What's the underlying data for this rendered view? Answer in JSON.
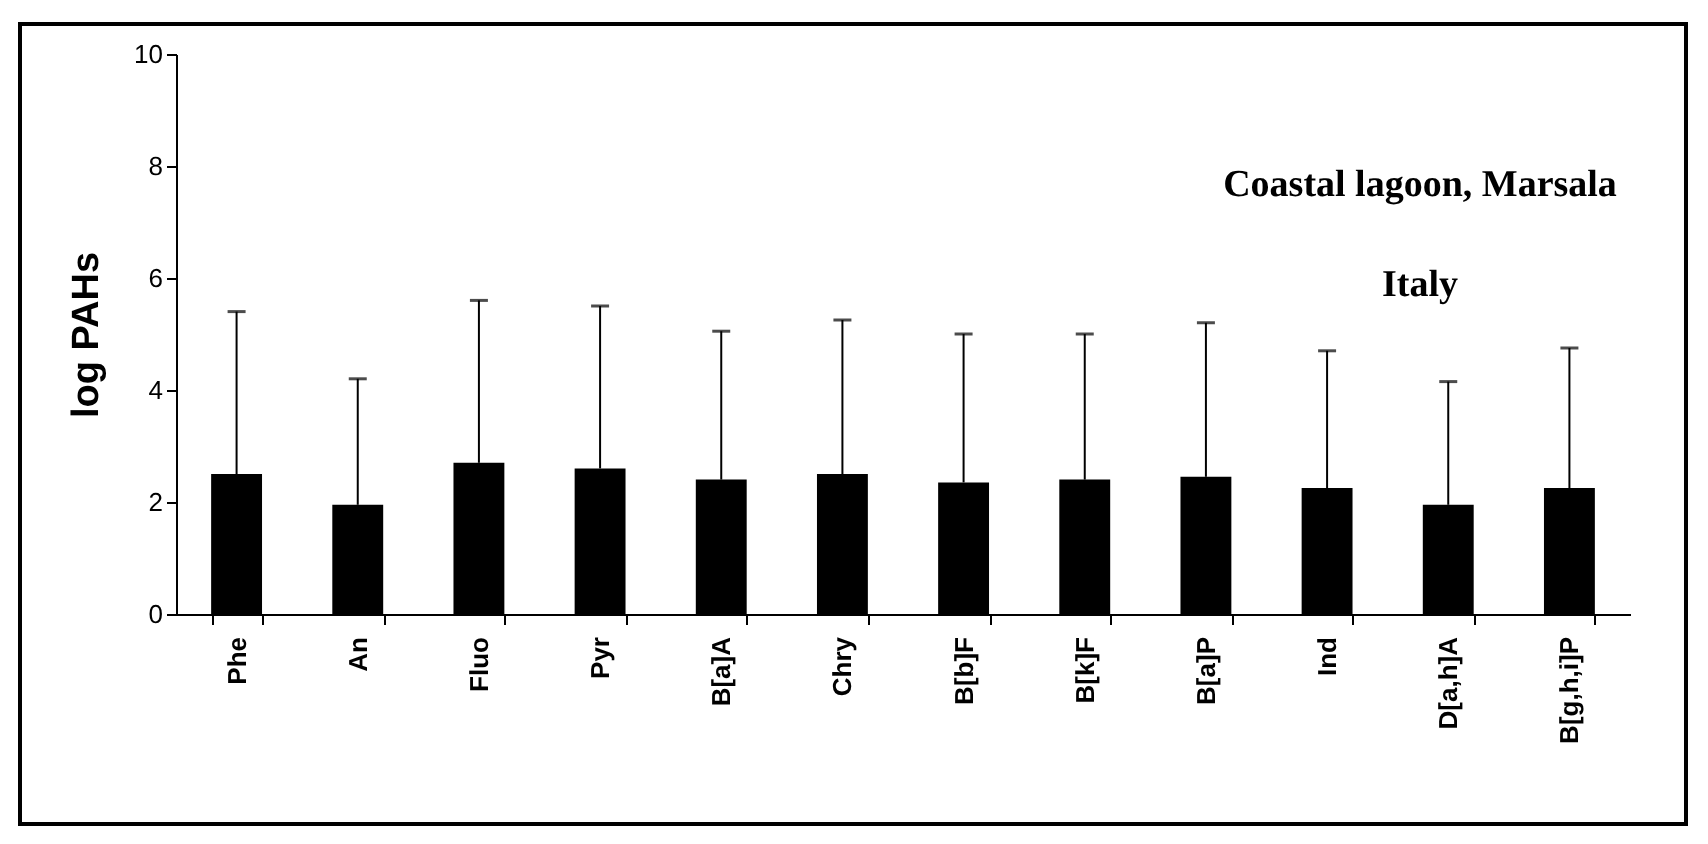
{
  "chart_data": {
    "type": "bar",
    "ylabel": "log PAHs",
    "annotations": [
      "Coastal lagoon, Marsala",
      "Italy"
    ],
    "categories": [
      "Phe",
      "An",
      "Fluo",
      "Pyr",
      "B[a]A",
      "Chry",
      "B[b]F",
      "B[k]F",
      "B[a]P",
      "Ind",
      "D[a,h]A",
      "B[g,h,i]P"
    ],
    "values": [
      2.5,
      1.95,
      2.7,
      2.6,
      2.4,
      2.5,
      2.35,
      2.4,
      2.45,
      2.25,
      1.95,
      2.25
    ],
    "errors": [
      [
        2.5,
        5.4
      ],
      [
        1.95,
        4.2
      ],
      [
        2.7,
        5.6
      ],
      [
        2.6,
        5.5
      ],
      [
        2.4,
        5.05
      ],
      [
        2.5,
        5.25
      ],
      [
        2.35,
        5.0
      ],
      [
        2.4,
        5.0
      ],
      [
        2.45,
        5.2
      ],
      [
        2.25,
        4.7
      ],
      [
        1.95,
        4.15
      ],
      [
        2.25,
        4.75
      ]
    ],
    "color": "#000000",
    "ylim": [
      0,
      10
    ],
    "yticks": [
      0,
      2,
      4,
      6,
      8,
      10
    ],
    "grid": false
  }
}
